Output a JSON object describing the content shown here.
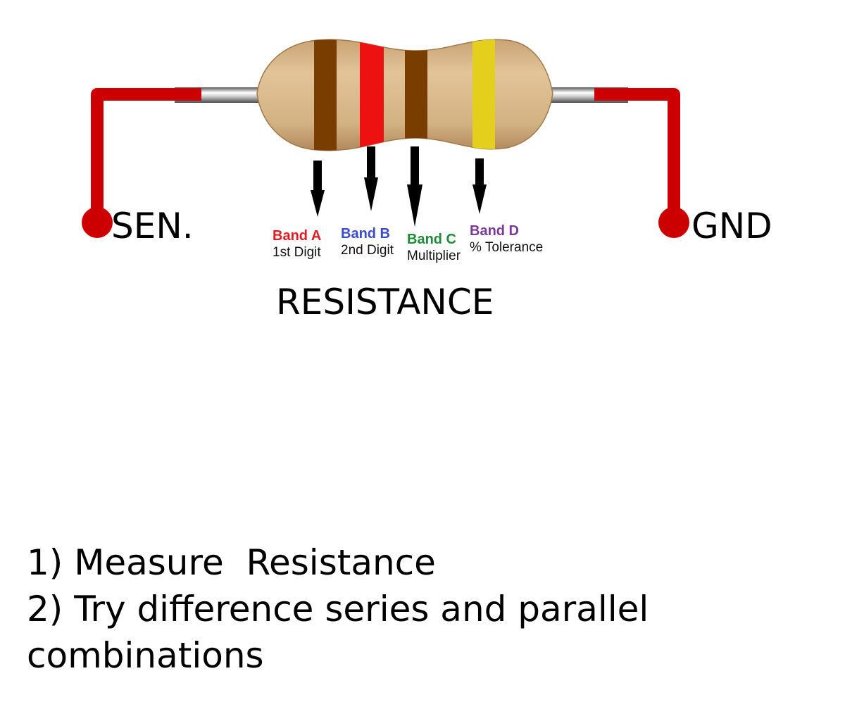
{
  "colors": {
    "wire": "#cc0000",
    "body": "#d6b386",
    "lead": "#b8b8b8",
    "band_a_swatch": "#7a3d00",
    "band_b_swatch": "#ee1111",
    "band_c_swatch": "#7a3d00",
    "band_d_swatch": "#e3cf1c",
    "band_a_text": "#e01d25",
    "band_b_text": "#3b4cc8",
    "band_c_text": "#1f8a3a",
    "band_d_text": "#7a3b96"
  },
  "terminals": {
    "left": "SEN.",
    "right": "GND"
  },
  "component_label": "RESISTANCE",
  "bands": [
    {
      "name": "Band A",
      "role": "1st Digit"
    },
    {
      "name": "Band B",
      "role": "2nd Digit"
    },
    {
      "name": "Band C",
      "role": "Multiplier"
    },
    {
      "name": "Band D",
      "role": "% Tolerance"
    }
  ],
  "instructions": [
    "1) Measure  Resistance",
    "2) Try difference series and parallel combinations"
  ]
}
